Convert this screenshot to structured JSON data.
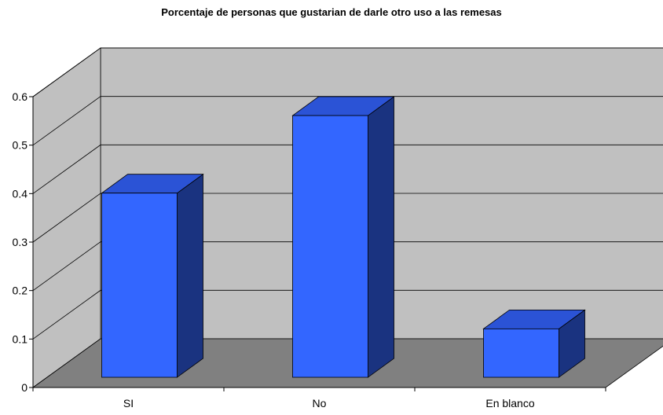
{
  "chart_data": {
    "type": "bar",
    "title": "Porcentaje de personas que gustarian de darle otro uso a las remesas",
    "categories": [
      "SI",
      "No",
      "En blanco"
    ],
    "values": [
      0.38,
      0.54,
      0.1
    ],
    "ylim": [
      0,
      0.6
    ],
    "y_ticks": [
      "0",
      "0.1",
      "0.2",
      "0.3",
      "0.4",
      "0.5",
      "0.6"
    ],
    "grid": true,
    "legend": "none",
    "colors": {
      "bar_front": "#3366ff",
      "bar_top": "#2b53d6",
      "bar_side": "#1a3380",
      "back_wall": "#c0c0c0",
      "side_wall": "#c0c0c0",
      "floor": "#808080",
      "gridline": "#000000"
    }
  }
}
